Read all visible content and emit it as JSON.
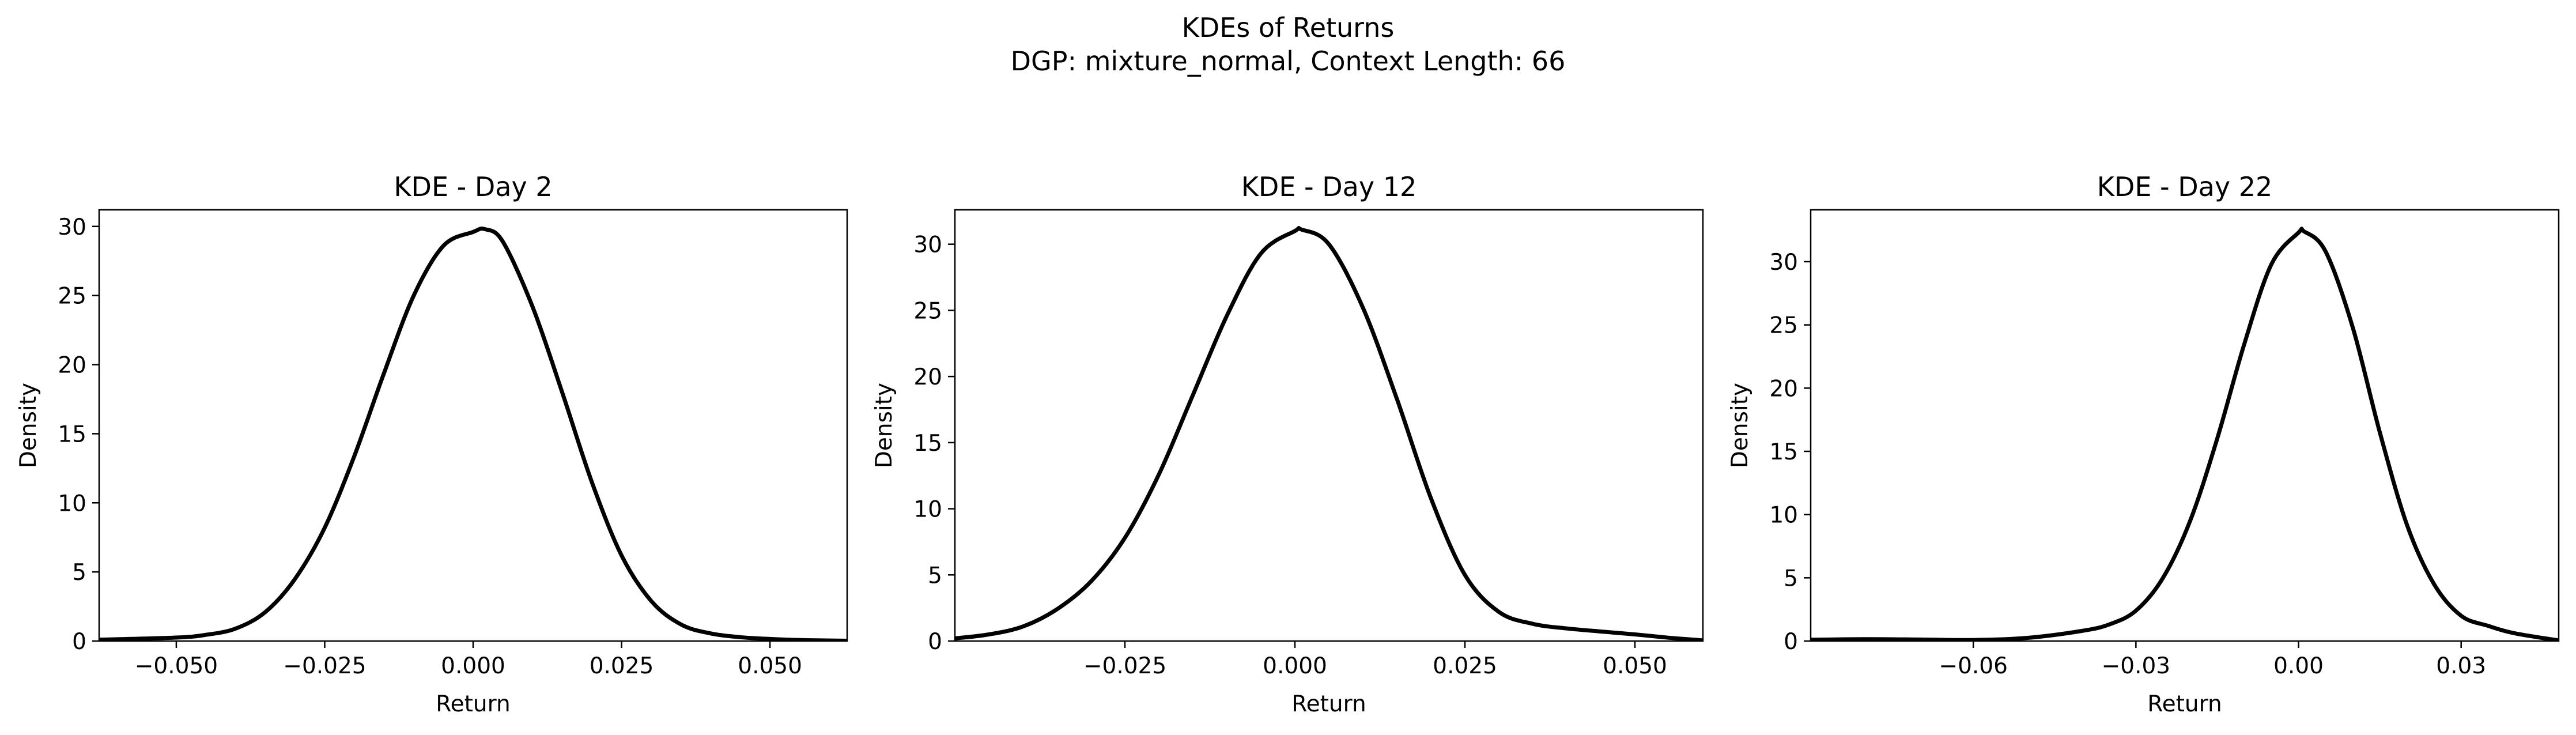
{
  "figure": {
    "title_line1": "KDEs of Returns",
    "title_line2": "DGP: mixture_normal, Context Length: 66"
  },
  "chart_data": [
    {
      "type": "line",
      "title": "KDE - Day 2",
      "xlabel": "Return",
      "ylabel": "Density",
      "xlim": [
        -0.063,
        0.063
      ],
      "ylim": [
        0,
        31.2
      ],
      "xticks": [
        -0.05,
        -0.025,
        0.0,
        0.025,
        0.05
      ],
      "xtick_labels": [
        "−0.050",
        "−0.025",
        "0.000",
        "0.025",
        "0.050"
      ],
      "yticks": [
        0,
        5,
        10,
        15,
        20,
        25,
        30
      ],
      "ytick_labels": [
        "0",
        "5",
        "10",
        "15",
        "20",
        "25",
        "30"
      ],
      "grid": false,
      "color": "#000000",
      "series": [
        {
          "x": [
            -0.063,
            -0.05,
            -0.045,
            -0.04,
            -0.035,
            -0.03,
            -0.025,
            -0.02,
            -0.015,
            -0.01,
            -0.005,
            0.0,
            0.002,
            0.005,
            0.01,
            0.015,
            0.02,
            0.025,
            0.03,
            0.035,
            0.04,
            0.045,
            0.05,
            0.055,
            0.063
          ],
          "y": [
            0.1,
            0.25,
            0.45,
            0.9,
            2.1,
            4.5,
            8.2,
            13.4,
            19.4,
            25.0,
            28.6,
            29.6,
            29.8,
            28.9,
            24.2,
            18.0,
            11.5,
            6.2,
            2.9,
            1.2,
            0.55,
            0.28,
            0.15,
            0.07,
            0.02
          ]
        }
      ]
    },
    {
      "type": "line",
      "title": "KDE - Day 12",
      "xlabel": "Return",
      "ylabel": "Density",
      "xlim": [
        -0.05,
        0.06
      ],
      "ylim": [
        0,
        32.6
      ],
      "xticks": [
        -0.025,
        0.0,
        0.025,
        0.05
      ],
      "xtick_labels": [
        "−0.025",
        "0.000",
        "0.025",
        "0.050"
      ],
      "yticks": [
        0,
        5,
        10,
        15,
        20,
        25,
        30
      ],
      "ytick_labels": [
        "0",
        "5",
        "10",
        "15",
        "20",
        "25",
        "30"
      ],
      "grid": false,
      "color": "#000000",
      "series": [
        {
          "x": [
            -0.05,
            -0.045,
            -0.04,
            -0.035,
            -0.03,
            -0.025,
            -0.02,
            -0.015,
            -0.01,
            -0.005,
            0.0,
            0.001,
            0.005,
            0.01,
            0.015,
            0.02,
            0.025,
            0.03,
            0.035,
            0.04,
            0.045,
            0.05,
            0.055,
            0.06
          ],
          "y": [
            0.2,
            0.5,
            1.1,
            2.4,
            4.5,
            7.8,
            12.6,
            18.6,
            24.6,
            29.3,
            31.0,
            31.1,
            30.0,
            25.2,
            18.3,
            10.8,
            5.0,
            2.2,
            1.3,
            0.95,
            0.72,
            0.5,
            0.25,
            0.05
          ]
        }
      ]
    },
    {
      "type": "line",
      "title": "KDE - Day 22",
      "xlabel": "Return",
      "ylabel": "Density",
      "xlim": [
        -0.09,
        0.048
      ],
      "ylim": [
        0,
        34.1
      ],
      "xticks": [
        -0.06,
        -0.03,
        0.0,
        0.03
      ],
      "xtick_labels": [
        "−0.06",
        "−0.03",
        "0.00",
        "0.03"
      ],
      "yticks": [
        0,
        5,
        10,
        15,
        20,
        25,
        30
      ],
      "ytick_labels": [
        "0",
        "5",
        "10",
        "15",
        "20",
        "25",
        "30"
      ],
      "grid": false,
      "color": "#000000",
      "series": [
        {
          "x": [
            -0.09,
            -0.08,
            -0.07,
            -0.06,
            -0.05,
            -0.04,
            -0.035,
            -0.03,
            -0.025,
            -0.02,
            -0.015,
            -0.01,
            -0.005,
            0.0,
            0.001,
            0.005,
            0.01,
            0.015,
            0.02,
            0.025,
            0.03,
            0.035,
            0.04,
            0.048
          ],
          "y": [
            0.1,
            0.15,
            0.12,
            0.08,
            0.25,
            0.8,
            1.3,
            2.4,
            5.0,
            9.5,
            16.0,
            23.5,
            29.8,
            32.3,
            32.4,
            30.8,
            24.8,
            16.5,
            9.2,
            4.5,
            2.0,
            1.2,
            0.6,
            0.05
          ]
        }
      ]
    }
  ]
}
